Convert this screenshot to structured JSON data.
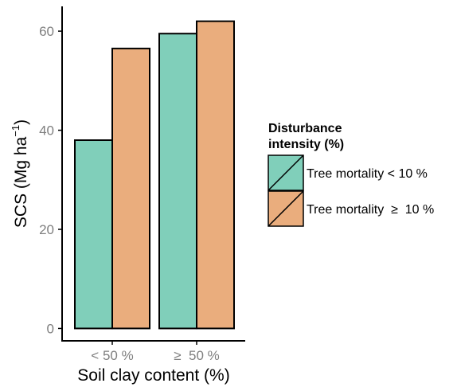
{
  "chart_data": {
    "type": "bar",
    "categories": [
      "< 50 %",
      "≥  50 %"
    ],
    "series": [
      {
        "name": "Tree mortality < 10 %",
        "color": "#80cfba",
        "values": [
          38,
          59.5
        ]
      },
      {
        "name": "Tree mortality  ≥  10 %",
        "color": "#eaad7d",
        "values": [
          56.5,
          62
        ]
      }
    ],
    "xlabel": "Soil clay content (%)",
    "ylabel": {
      "main": "SCS (Mg ha",
      "sup": "−1",
      "close": ")"
    },
    "ylim": [
      -2.5,
      65
    ],
    "yticks": [
      0,
      20,
      40,
      60
    ],
    "grid": false,
    "legend": {
      "title_line1": "Disturbance",
      "title_line2": "intensity (%)",
      "position": "right"
    }
  }
}
